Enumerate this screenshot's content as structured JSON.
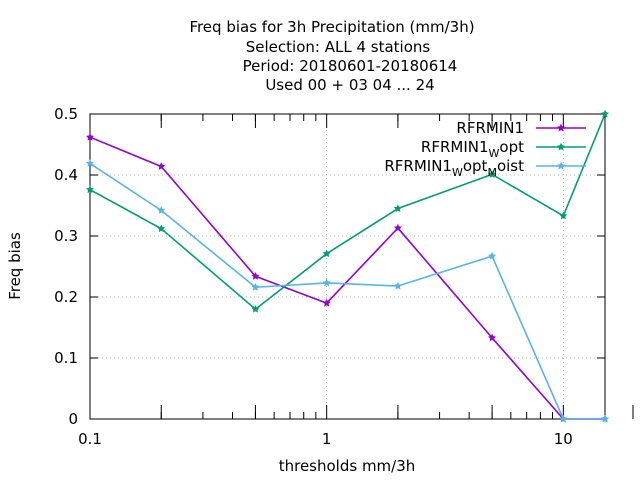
{
  "chart_data": {
    "type": "line",
    "title_lines": [
      "Freq bias  for 3h Precipitation (mm/3h)",
      "Selection: ALL      4 stations",
      "Period: 20180601-20180614",
      "Used  00 + 03 04 ... 24"
    ],
    "xlabel": "thresholds mm/3h",
    "ylabel": "Freq bias",
    "xscale": "log",
    "xlim": [
      0.1,
      15
    ],
    "ylim": [
      0,
      0.5
    ],
    "grid": true,
    "legend_position": "top-right",
    "x_ticks": [
      {
        "value": 0.1,
        "label": "0.1"
      },
      {
        "value": 1,
        "label": "1"
      },
      {
        "value": 10,
        "label": "10"
      }
    ],
    "x_minor_ticks": [
      0.2,
      0.5,
      2,
      5
    ],
    "y_ticks": [
      {
        "value": 0,
        "label": "0"
      },
      {
        "value": 0.1,
        "label": "0.1"
      },
      {
        "value": 0.2,
        "label": "0.2"
      },
      {
        "value": 0.3,
        "label": "0.3"
      },
      {
        "value": 0.4,
        "label": "0.4"
      },
      {
        "value": 0.5,
        "label": "0.5"
      }
    ],
    "x": [
      0.1,
      0.2,
      0.5,
      1,
      2,
      5,
      10,
      15
    ],
    "series": [
      {
        "name": "RFRMIN1",
        "legend_parts": [
          {
            "text": "RFRMIN1",
            "sub": false
          }
        ],
        "color": "#9400d3",
        "values": [
          0.462,
          0.414,
          0.234,
          0.19,
          0.313,
          0.133,
          0.0,
          0.0
        ]
      },
      {
        "name": "RFRMIN1_W opt",
        "legend_parts": [
          {
            "text": "RFRMIN1",
            "sub": false
          },
          {
            "text": "W",
            "sub": true
          },
          {
            "text": "opt",
            "sub": false
          }
        ],
        "color": "#009e73",
        "values": [
          0.376,
          0.312,
          0.18,
          0.271,
          0.345,
          0.401,
          0.333,
          0.5
        ]
      },
      {
        "name": "RFRMIN1_W opt_M oist",
        "legend_parts": [
          {
            "text": "RFRMIN1",
            "sub": false
          },
          {
            "text": "W",
            "sub": true
          },
          {
            "text": "opt",
            "sub": false
          },
          {
            "text": "M",
            "sub": true
          },
          {
            "text": "oist",
            "sub": false
          }
        ],
        "color": "#56b4e9",
        "values": [
          0.419,
          0.342,
          0.216,
          0.223,
          0.218,
          0.267,
          0.0,
          0.0
        ]
      }
    ]
  }
}
